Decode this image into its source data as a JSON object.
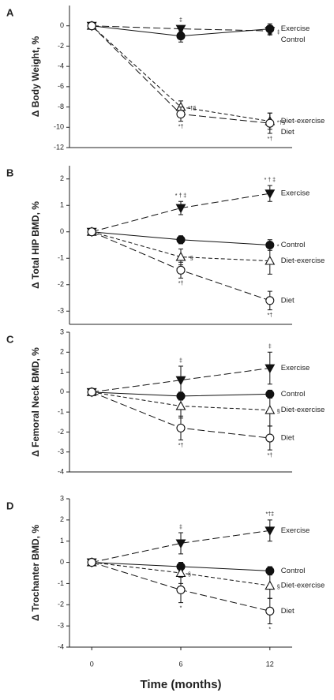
{
  "chart_data": [
    {
      "type": "line",
      "panel": "A",
      "y_label": "Δ Body Weight, %",
      "x": [
        0,
        6,
        12
      ],
      "xlim": [
        -1.5,
        13.5
      ],
      "ylim": [
        -12,
        2
      ],
      "yticks": [
        -12,
        -10,
        -8,
        -6,
        -4,
        -2,
        0
      ],
      "series": [
        {
          "name": "Control",
          "color": "#111",
          "marker": "triangle-down",
          "filled": true,
          "line_style": "long-dash",
          "values": [
            0,
            -0.3,
            -0.5
          ],
          "errors": [
            0,
            0.3,
            0.4
          ],
          "annotations": [
            null,
            "‡",
            "‡"
          ]
        },
        {
          "name": "Exercise",
          "color": "#111",
          "marker": "circle",
          "filled": true,
          "line_style": "solid",
          "values": [
            0,
            -1.0,
            -0.3
          ],
          "errors": [
            0,
            0.6,
            0.5
          ],
          "annotations": [
            null,
            null,
            null
          ]
        },
        {
          "name": "Diet-exercise",
          "color": "#111",
          "marker": "triangle-up",
          "filled": false,
          "line_style": "dashed",
          "values": [
            0,
            -8.0,
            -9.4
          ],
          "errors": [
            0,
            0.6,
            0.8
          ],
          "annotations": [
            null,
            "*†§",
            "*†§"
          ]
        },
        {
          "name": "Diet",
          "color": "#111",
          "marker": "circle",
          "filled": false,
          "line_style": "long-dash",
          "values": [
            0,
            -8.7,
            -9.6
          ],
          "errors": [
            0,
            0.7,
            1.0
          ],
          "annotations": [
            null,
            "*†",
            "*†"
          ]
        }
      ]
    },
    {
      "type": "line",
      "panel": "B",
      "y_label": "Δ Total HIP BMD, %",
      "x": [
        0,
        6,
        12
      ],
      "xlim": [
        -1.5,
        13.5
      ],
      "ylim": [
        -3.5,
        2.5
      ],
      "yticks": [
        -3,
        -2,
        -1,
        0,
        1,
        2
      ],
      "series": [
        {
          "name": "Control",
          "color": "#111",
          "marker": "circle",
          "filled": true,
          "line_style": "solid",
          "values": [
            0,
            -0.3,
            -0.5
          ],
          "errors": [
            0,
            0.15,
            0.2
          ],
          "annotations": [
            null,
            null,
            "*"
          ]
        },
        {
          "name": "Exercise",
          "color": "#111",
          "marker": "triangle-down",
          "filled": true,
          "line_style": "long-dash",
          "values": [
            0,
            0.9,
            1.45
          ],
          "errors": [
            0,
            0.25,
            0.3
          ],
          "annotations": [
            null,
            "* † ‡",
            "* † ‡"
          ]
        },
        {
          "name": "Diet-exercise",
          "color": "#111",
          "marker": "triangle-up",
          "filled": false,
          "line_style": "dashed",
          "values": [
            0,
            -0.95,
            -1.1
          ],
          "errors": [
            0,
            0.3,
            0.5
          ],
          "annotations": [
            null,
            "*§",
            null
          ]
        },
        {
          "name": "Diet",
          "color": "#111",
          "marker": "circle",
          "filled": false,
          "line_style": "long-dash",
          "values": [
            0,
            -1.45,
            -2.6
          ],
          "errors": [
            0,
            0.3,
            0.35
          ],
          "annotations": [
            null,
            "*†",
            "*†"
          ]
        }
      ]
    },
    {
      "type": "line",
      "panel": "C",
      "y_label": "Δ Femoral Neck BMD, %",
      "x": [
        0,
        6,
        12
      ],
      "xlim": [
        -1.5,
        13.5
      ],
      "ylim": [
        -4,
        3
      ],
      "yticks": [
        -4,
        -3,
        -2,
        -1,
        0,
        1,
        2,
        3
      ],
      "series": [
        {
          "name": "Control",
          "color": "#111",
          "marker": "circle",
          "filled": true,
          "line_style": "solid",
          "values": [
            0,
            -0.2,
            -0.1
          ],
          "errors": [
            0,
            0.2,
            0.2
          ],
          "annotations": [
            null,
            null,
            null
          ]
        },
        {
          "name": "Exercise",
          "color": "#111",
          "marker": "triangle-down",
          "filled": true,
          "line_style": "long-dash",
          "values": [
            0,
            0.6,
            1.2
          ],
          "errors": [
            0,
            0.7,
            0.8
          ],
          "annotations": [
            null,
            "‡",
            "‡"
          ]
        },
        {
          "name": "Diet-exercise",
          "color": "#111",
          "marker": "triangle-up",
          "filled": false,
          "line_style": "dashed",
          "values": [
            0,
            -0.7,
            -0.9
          ],
          "errors": [
            0,
            0.6,
            0.8
          ],
          "annotations": [
            null,
            null,
            "§"
          ]
        },
        {
          "name": "Diet",
          "color": "#111",
          "marker": "circle",
          "filled": false,
          "line_style": "long-dash",
          "values": [
            0,
            -1.8,
            -2.3
          ],
          "errors": [
            0,
            0.6,
            0.6
          ],
          "annotations": [
            null,
            "*†",
            "*†"
          ]
        }
      ]
    },
    {
      "type": "line",
      "panel": "D",
      "y_label": "Δ Trochanter BMD, %",
      "x_label": "Time (months)",
      "x": [
        0,
        6,
        12
      ],
      "xlim": [
        -1.5,
        13.5
      ],
      "xticks": [
        0,
        6,
        12
      ],
      "ylim": [
        -4,
        3
      ],
      "yticks": [
        -4,
        -3,
        -2,
        -1,
        0,
        1,
        2,
        3
      ],
      "series": [
        {
          "name": "Control",
          "color": "#111",
          "marker": "circle",
          "filled": true,
          "line_style": "solid",
          "values": [
            0,
            -0.2,
            -0.4
          ],
          "errors": [
            0,
            0.2,
            0.2
          ],
          "annotations": [
            null,
            null,
            null
          ]
        },
        {
          "name": "Exercise",
          "color": "#111",
          "marker": "triangle-down",
          "filled": true,
          "line_style": "long-dash",
          "values": [
            0,
            0.9,
            1.5
          ],
          "errors": [
            0,
            0.5,
            0.5
          ],
          "annotations": [
            null,
            "‡",
            "*†‡"
          ]
        },
        {
          "name": "Diet-exercise",
          "color": "#111",
          "marker": "triangle-up",
          "filled": false,
          "line_style": "dashed",
          "values": [
            0,
            -0.5,
            -1.1
          ],
          "errors": [
            0,
            0.5,
            0.6
          ],
          "annotations": [
            null,
            "§",
            "§"
          ]
        },
        {
          "name": "Diet",
          "color": "#111",
          "marker": "circle",
          "filled": false,
          "line_style": "long-dash",
          "values": [
            0,
            -1.3,
            -2.3
          ],
          "errors": [
            0,
            0.6,
            0.6
          ],
          "annotations": [
            null,
            "*",
            "*"
          ]
        }
      ]
    }
  ]
}
